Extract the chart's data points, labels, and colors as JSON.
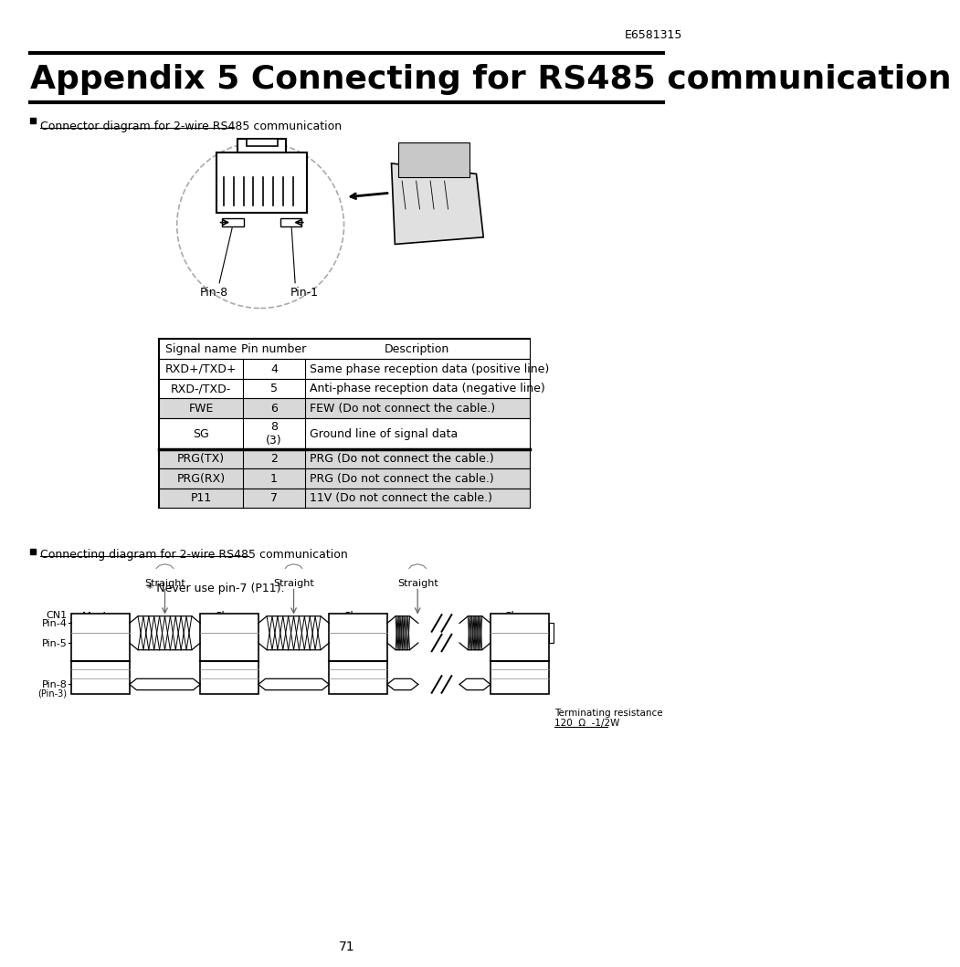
{
  "title": "Appendix 5 Connecting for RS485 communication",
  "doc_number": "E6581315",
  "page_number": "71",
  "section1_title": "Connector diagram for 2-wire RS485 communication",
  "section2_title": "Connecting diagram for 2-wire RS485 communication",
  "never_use_note": "* Never use pin-7 (P11).",
  "table_headers": [
    "Signal name",
    "Pin number",
    "Description"
  ],
  "table_rows": [
    [
      "RXD+/TXD+",
      "4",
      "Same phase reception data (positive line)",
      "white",
      28
    ],
    [
      "RXD-/TXD-",
      "5",
      "Anti-phase reception data (negative line)",
      "white",
      28
    ],
    [
      "FWE",
      "6",
      "FEW (Do not connect the cable.)",
      "#d8d8d8",
      28
    ],
    [
      "SG",
      "8\n(3)",
      "Ground line of signal data",
      "white",
      44
    ],
    [
      "PRG(TX)",
      "2",
      "PRG (Do not connect the cable.)",
      "#d8d8d8",
      28
    ],
    [
      "PRG(RX)",
      "1",
      "PRG (Do not connect the cable.)",
      "#d8d8d8",
      28
    ],
    [
      "P11",
      "7",
      "11V (Do not connect the cable.)",
      "#d8d8d8",
      28
    ]
  ],
  "background_color": "#ffffff"
}
